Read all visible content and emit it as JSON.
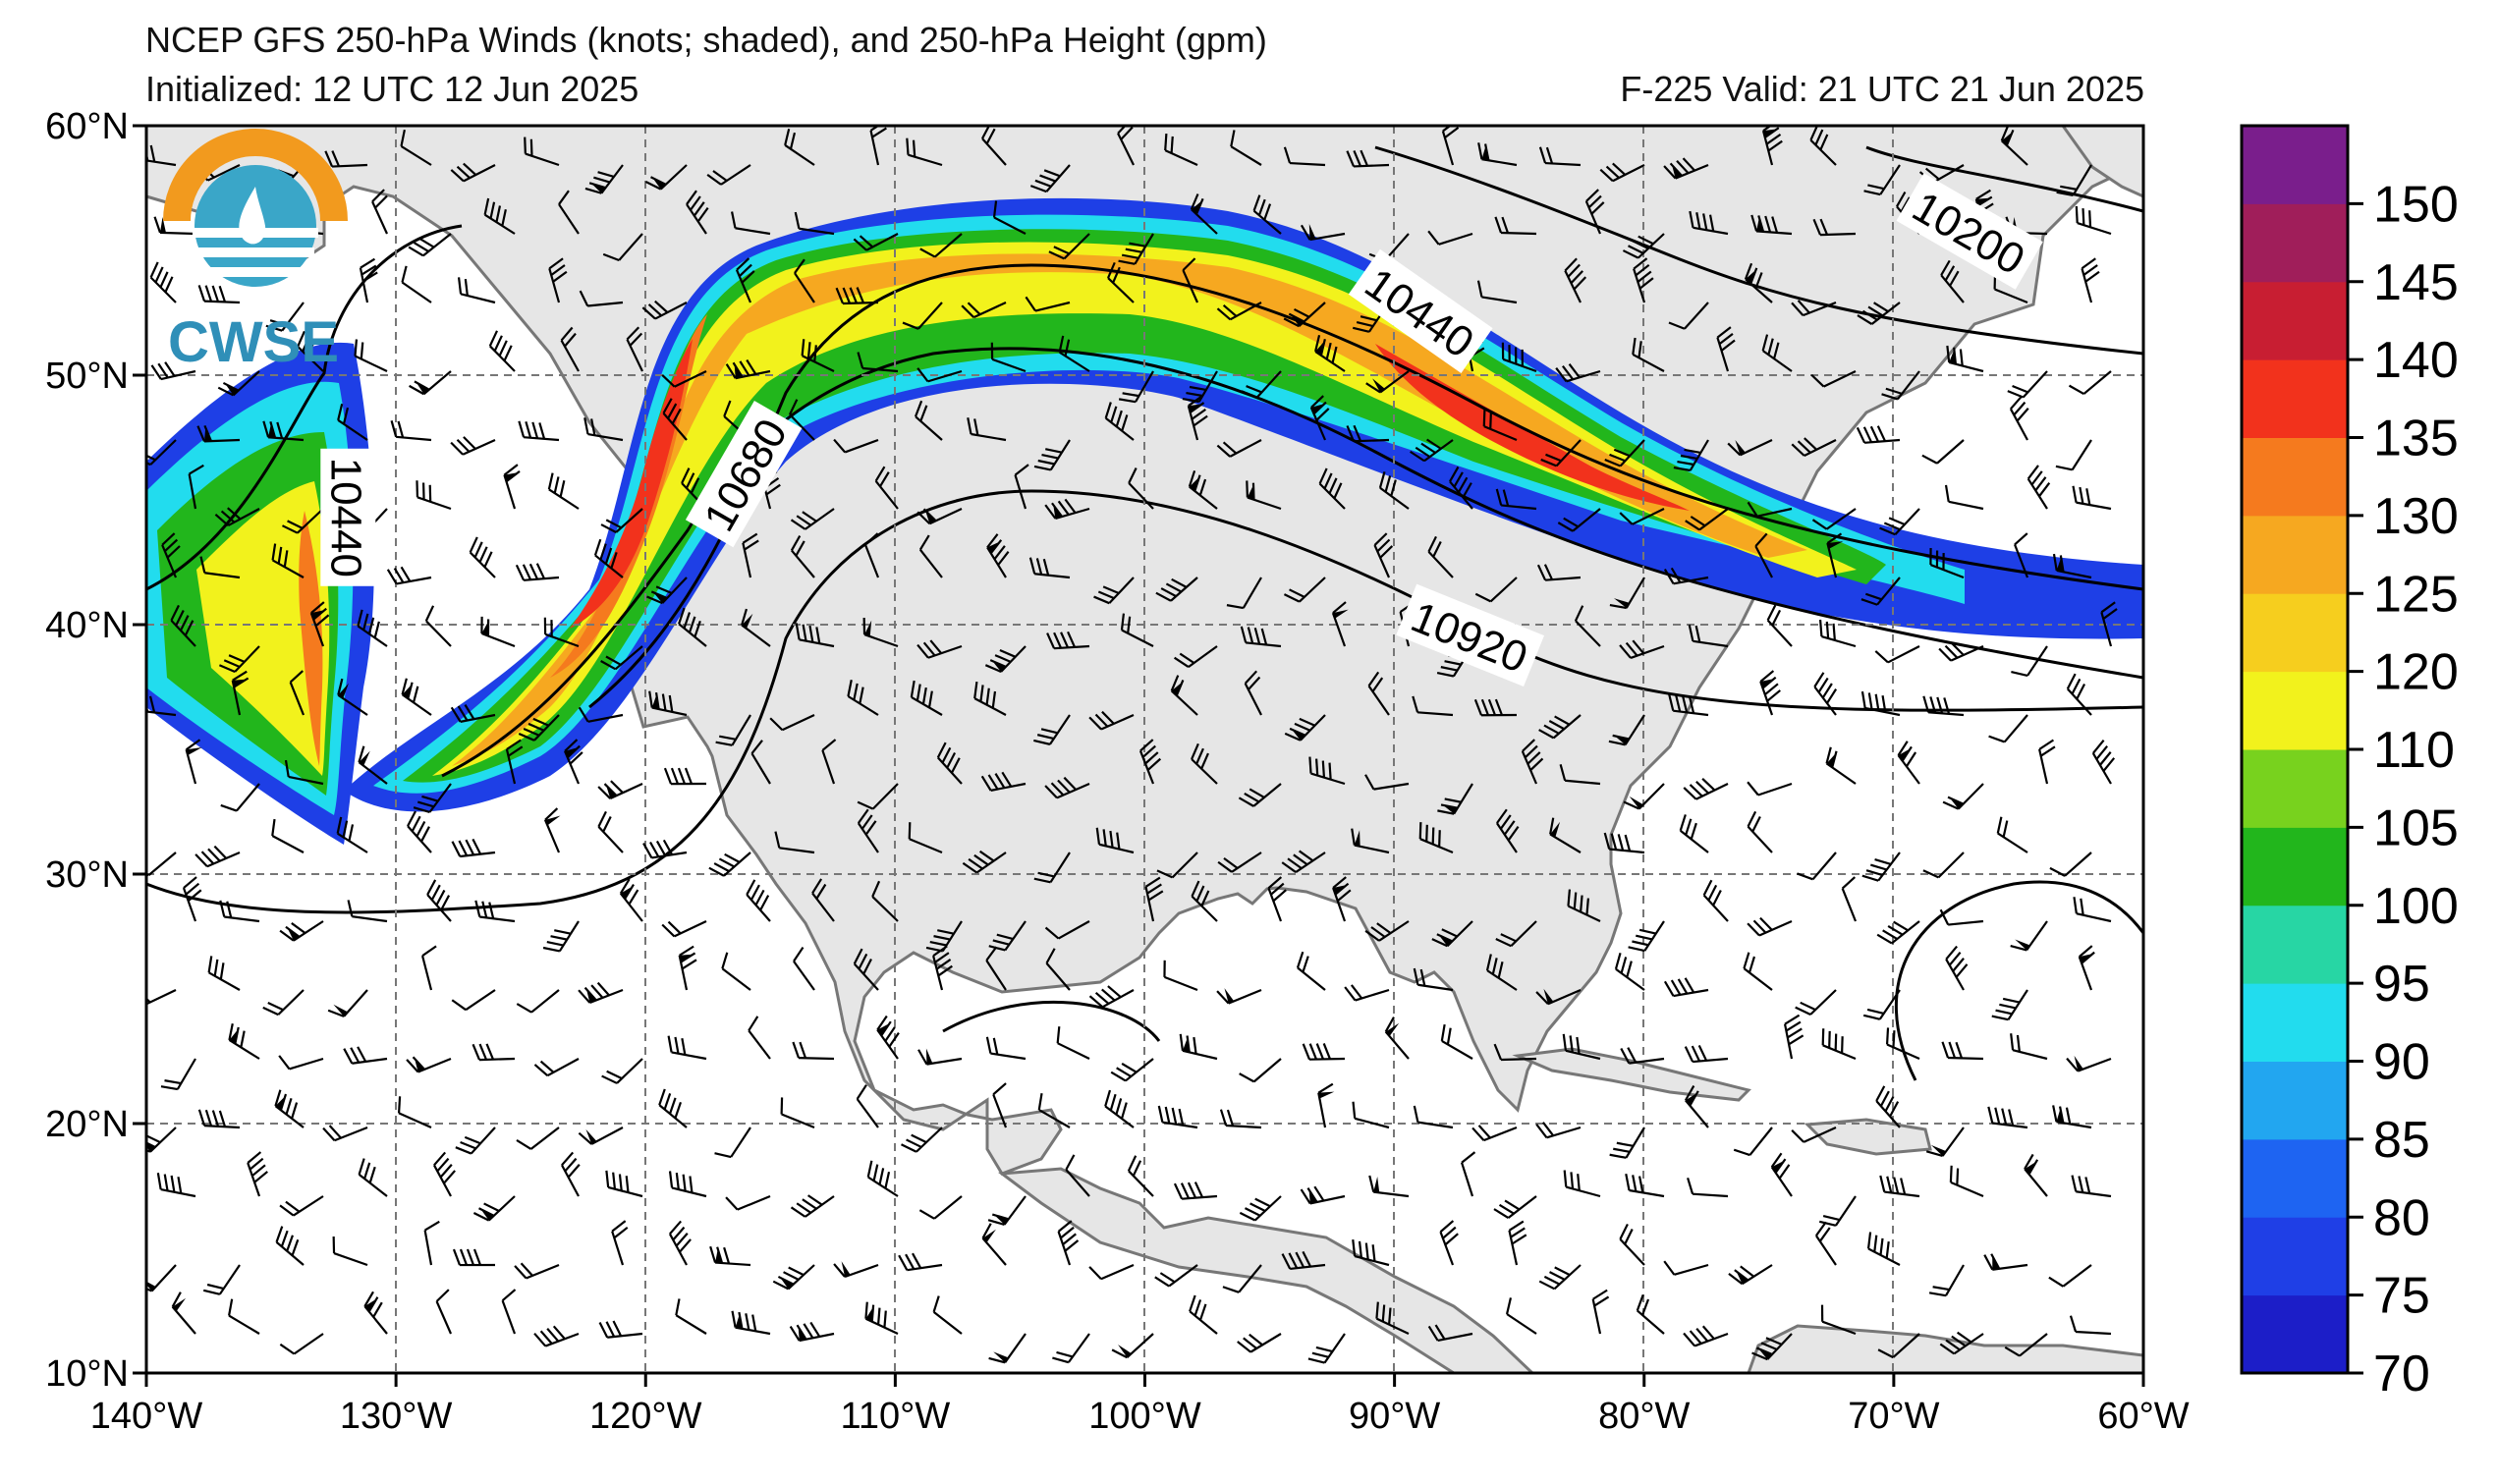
{
  "title_line1": "NCEP GFS 250-hPa Winds (knots; shaded), and 250-hPa Height (gpm)",
  "title_line2": "Initialized: 12 UTC 12 Jun 2025",
  "valid_line": "F-225  Valid: 21 UTC 21 Jun 2025",
  "logo_text": "CWSE",
  "map": {
    "lon_range": [
      -140,
      -60
    ],
    "lat_range": [
      10,
      60
    ],
    "lon_ticks": [
      {
        "value": -140,
        "label": "140°W"
      },
      {
        "value": -130,
        "label": "130°W"
      },
      {
        "value": -120,
        "label": "120°W"
      },
      {
        "value": -110,
        "label": "110°W"
      },
      {
        "value": -100,
        "label": "100°W"
      },
      {
        "value": -90,
        "label": "90°W"
      },
      {
        "value": -80,
        "label": "80°W"
      },
      {
        "value": -70,
        "label": "70°W"
      },
      {
        "value": -60,
        "label": "60°W"
      }
    ],
    "lat_ticks": [
      {
        "value": 60,
        "label": "60°N"
      },
      {
        "value": 50,
        "label": "50°N"
      },
      {
        "value": 40,
        "label": "40°N"
      },
      {
        "value": 30,
        "label": "30°N"
      },
      {
        "value": 20,
        "label": "20°N"
      },
      {
        "value": 10,
        "label": "10°N"
      }
    ],
    "contour_labels": [
      {
        "text": "10200",
        "lon": -67,
        "lat": 55.7,
        "angle": 30
      },
      {
        "text": "10440",
        "lon": -89,
        "lat": 52.5,
        "angle": 35
      },
      {
        "text": "10440",
        "lon": -132,
        "lat": 44.3,
        "angle": 90
      },
      {
        "text": "10680",
        "lon": -116,
        "lat": 46,
        "angle": -60
      },
      {
        "text": "10920",
        "lon": -87,
        "lat": 39.5,
        "angle": 22
      }
    ]
  },
  "colorbar": {
    "levels": [
      "70",
      "75",
      "80",
      "85",
      "90",
      "95",
      "100",
      "105",
      "110",
      "120",
      "125",
      "130",
      "135",
      "140",
      "145",
      "150"
    ],
    "colors": [
      "#1c1ec8",
      "#1f3fe6",
      "#1e64f2",
      "#22a6f0",
      "#22dcee",
      "#27d6a4",
      "#22b61c",
      "#78d21e",
      "#f2f21c",
      "#f6ce1e",
      "#f6a820",
      "#f57a1e",
      "#f2321c",
      "#c81e32",
      "#a01e5a",
      "#7a1e8c"
    ]
  }
}
